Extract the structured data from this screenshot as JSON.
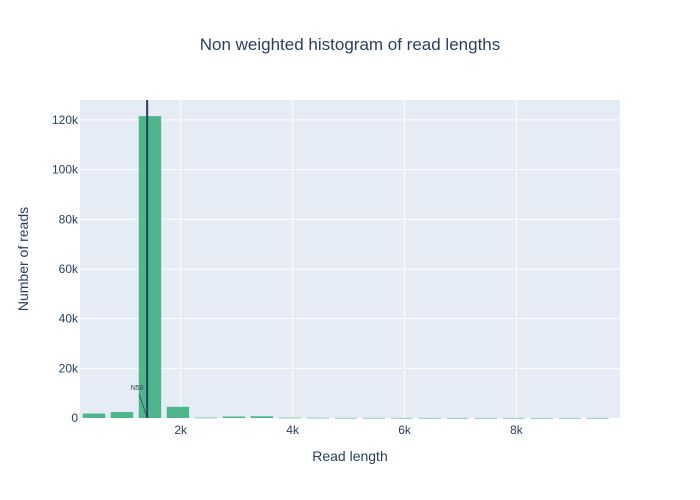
{
  "chart_data": {
    "type": "bar",
    "title": "Non weighted histogram of read lengths",
    "xlabel": "Read length",
    "ylabel": "Number of reads",
    "xlim": [
      200,
      9850
    ],
    "ylim": [
      0,
      128000
    ],
    "xticks": [
      {
        "value": 2000,
        "label": "2k"
      },
      {
        "value": 4000,
        "label": "4k"
      },
      {
        "value": 6000,
        "label": "6k"
      },
      {
        "value": 8000,
        "label": "8k"
      }
    ],
    "yticks": [
      {
        "value": 0,
        "label": "0"
      },
      {
        "value": 20000,
        "label": "20k"
      },
      {
        "value": 40000,
        "label": "40k"
      },
      {
        "value": 60000,
        "label": "60k"
      },
      {
        "value": 80000,
        "label": "80k"
      },
      {
        "value": 100000,
        "label": "100k"
      },
      {
        "value": 120000,
        "label": "120k"
      }
    ],
    "bin_width": 500,
    "bins": [
      {
        "x": 450,
        "count": 1800
      },
      {
        "x": 950,
        "count": 2400
      },
      {
        "x": 1450,
        "count": 121500
      },
      {
        "x": 1950,
        "count": 4500
      },
      {
        "x": 2450,
        "count": 150
      },
      {
        "x": 2950,
        "count": 600
      },
      {
        "x": 3450,
        "count": 700
      },
      {
        "x": 3950,
        "count": 120
      },
      {
        "x": 4450,
        "count": 80
      },
      {
        "x": 4950,
        "count": 60
      },
      {
        "x": 5450,
        "count": 50
      },
      {
        "x": 5950,
        "count": 40
      },
      {
        "x": 6450,
        "count": 30
      },
      {
        "x": 6950,
        "count": 25
      },
      {
        "x": 7450,
        "count": 20
      },
      {
        "x": 7950,
        "count": 20
      },
      {
        "x": 8450,
        "count": 15
      },
      {
        "x": 8950,
        "count": 15
      },
      {
        "x": 9450,
        "count": 10
      }
    ],
    "n50": {
      "label": "N50",
      "value": 1400
    },
    "grid": true,
    "colors": {
      "bar": "#4cb68a",
      "plot_bg": "#e5ecf6",
      "grid": "#ffffff",
      "n50_line": "#2a3f5f",
      "text": "#2a3f5f"
    }
  }
}
